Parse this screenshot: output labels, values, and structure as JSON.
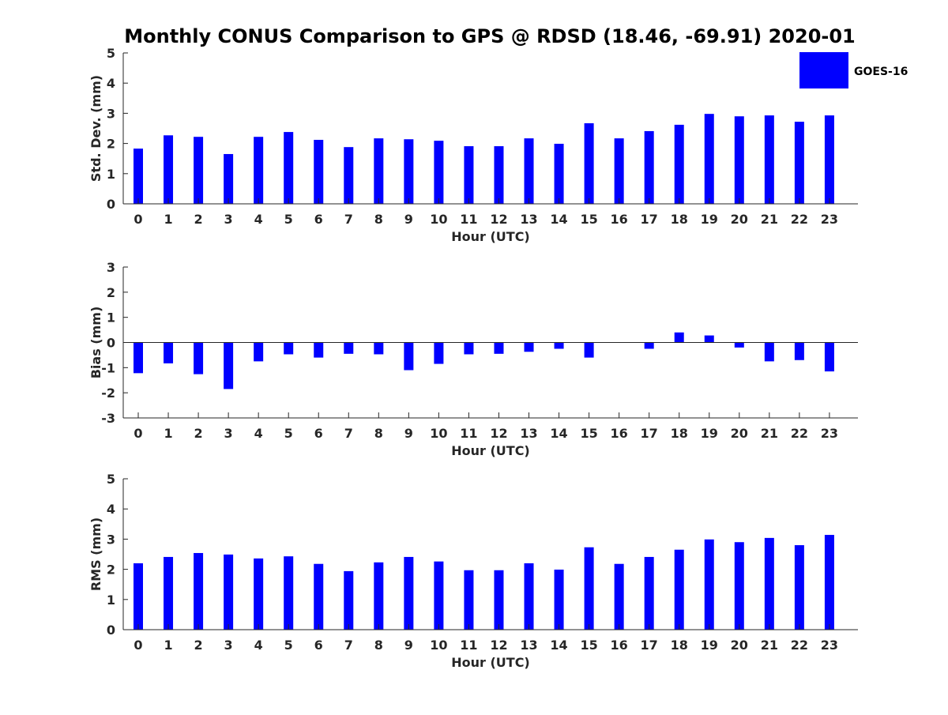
{
  "title": "Monthly CONUS Comparison to GPS @ RDSD (18.46, -69.91) 2020-01",
  "colors": {
    "bar": "#0000ff",
    "axis": "#262626",
    "text": "#000000"
  },
  "legend": {
    "label": "GOES-16",
    "placement": "top-right"
  },
  "chart_data": [
    {
      "type": "bar",
      "series_name": "GOES-16",
      "xlabel": "Hour (UTC)",
      "ylabel": "Std. Dev. (mm)",
      "ylim": [
        0,
        5
      ],
      "yticks": [
        0,
        1,
        2,
        3,
        4,
        5
      ],
      "categories": [
        "0",
        "1",
        "2",
        "3",
        "4",
        "5",
        "6",
        "7",
        "8",
        "9",
        "10",
        "11",
        "12",
        "13",
        "14",
        "15",
        "16",
        "17",
        "18",
        "19",
        "20",
        "21",
        "22",
        "23"
      ],
      "values": [
        1.83,
        2.27,
        2.22,
        1.65,
        2.22,
        2.38,
        2.12,
        1.88,
        2.17,
        2.14,
        2.09,
        1.91,
        1.91,
        2.17,
        1.99,
        2.67,
        2.17,
        2.41,
        2.62,
        2.98,
        2.9,
        2.93,
        2.72,
        2.93
      ],
      "grid": false
    },
    {
      "type": "bar",
      "series_name": "GOES-16",
      "xlabel": "Hour (UTC)",
      "ylabel": "Bias (mm)",
      "ylim": [
        -3,
        3
      ],
      "yticks": [
        -3,
        -2,
        -1,
        0,
        1,
        2,
        3
      ],
      "categories": [
        "0",
        "1",
        "2",
        "3",
        "4",
        "5",
        "6",
        "7",
        "8",
        "9",
        "10",
        "11",
        "12",
        "13",
        "14",
        "15",
        "16",
        "17",
        "18",
        "19",
        "20",
        "21",
        "22",
        "23"
      ],
      "values": [
        -1.22,
        -0.83,
        -1.26,
        -1.85,
        -0.75,
        -0.47,
        -0.6,
        -0.45,
        -0.47,
        -1.1,
        -0.85,
        -0.47,
        -0.45,
        -0.37,
        -0.25,
        -0.6,
        0.0,
        -0.25,
        0.4,
        0.28,
        -0.2,
        -0.75,
        -0.7,
        -1.15
      ],
      "grid": false
    },
    {
      "type": "bar",
      "series_name": "GOES-16",
      "xlabel": "Hour (UTC)",
      "ylabel": "RMS (mm)",
      "ylim": [
        0,
        5
      ],
      "yticks": [
        0,
        1,
        2,
        3,
        4,
        5
      ],
      "categories": [
        "0",
        "1",
        "2",
        "3",
        "4",
        "5",
        "6",
        "7",
        "8",
        "9",
        "10",
        "11",
        "12",
        "13",
        "14",
        "15",
        "16",
        "17",
        "18",
        "19",
        "20",
        "21",
        "22",
        "23"
      ],
      "values": [
        2.2,
        2.41,
        2.54,
        2.49,
        2.36,
        2.43,
        2.18,
        1.94,
        2.23,
        2.41,
        2.26,
        1.97,
        1.97,
        2.2,
        1.99,
        2.73,
        2.18,
        2.41,
        2.65,
        2.99,
        2.9,
        3.04,
        2.8,
        3.14
      ],
      "grid": false
    }
  ]
}
